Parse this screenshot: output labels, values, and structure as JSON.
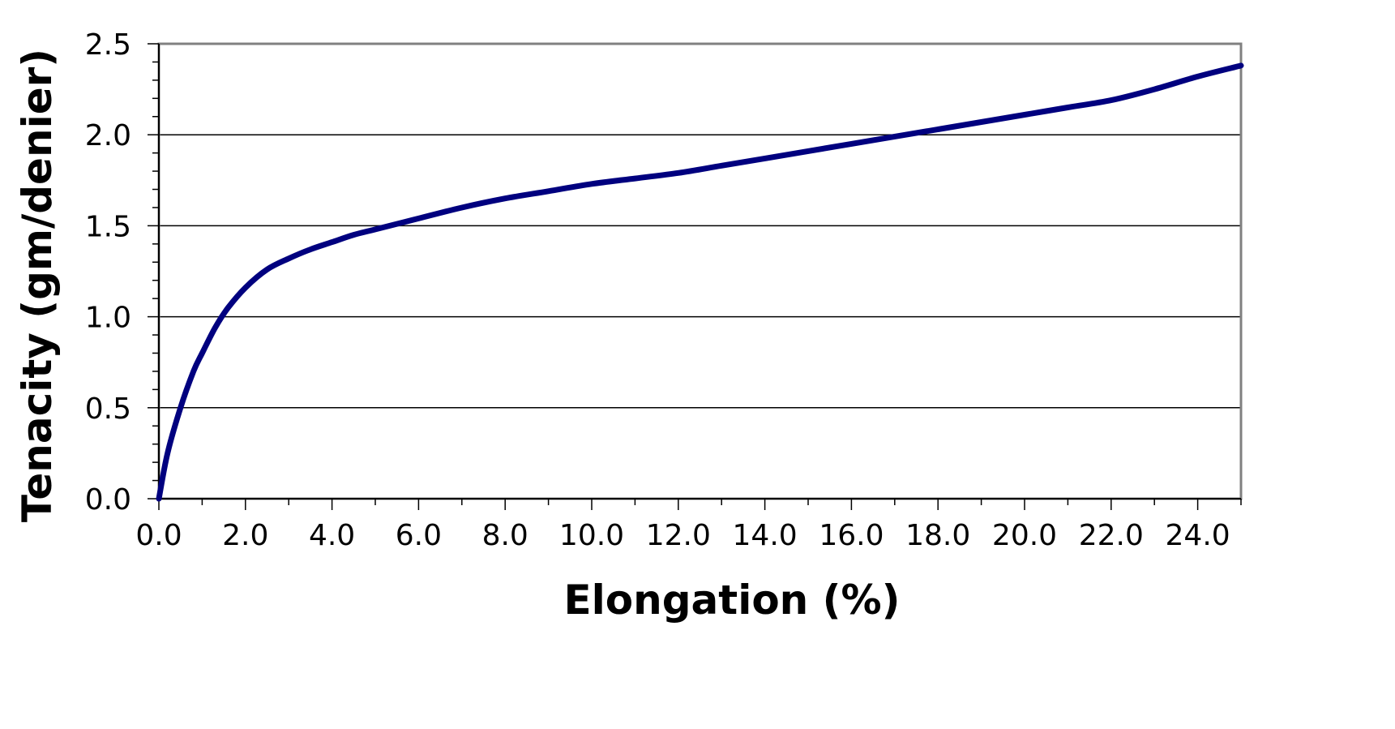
{
  "chart_data": {
    "type": "line",
    "title": "",
    "xlabel": "Elongation (%)",
    "ylabel": "Tenacity (gm/denier)",
    "xlim": [
      0,
      25
    ],
    "ylim": [
      0,
      2.5
    ],
    "x_ticks": [
      "0.0",
      "2.0",
      "4.0",
      "6.0",
      "8.0",
      "10.0",
      "12.0",
      "14.0",
      "16.0",
      "18.0",
      "20.0",
      "22.0",
      "24.0"
    ],
    "y_ticks": [
      "0.0",
      "0.5",
      "1.0",
      "1.5",
      "2.0",
      "2.5"
    ],
    "grid": "horizontal",
    "line_color": "#00007f",
    "series": [
      {
        "x": [
          0,
          0.2,
          0.5,
          0.8,
          1.0,
          1.3,
          1.6,
          2.0,
          2.5,
          3.0,
          3.5,
          4.0,
          4.5,
          5.0,
          6.0,
          7.0,
          8.0,
          9.0,
          10.0,
          11.0,
          12.0,
          13.0,
          14.0,
          15.0,
          16.0,
          17.0,
          18.0,
          19.0,
          20.0,
          21.0,
          22.0,
          23.0,
          24.0,
          25.0
        ],
        "y": [
          0.0,
          0.25,
          0.5,
          0.7,
          0.8,
          0.94,
          1.05,
          1.16,
          1.26,
          1.32,
          1.37,
          1.41,
          1.45,
          1.48,
          1.54,
          1.6,
          1.65,
          1.69,
          1.73,
          1.76,
          1.79,
          1.83,
          1.87,
          1.91,
          1.95,
          1.99,
          2.03,
          2.07,
          2.11,
          2.15,
          2.19,
          2.25,
          2.32,
          2.38
        ]
      }
    ]
  }
}
